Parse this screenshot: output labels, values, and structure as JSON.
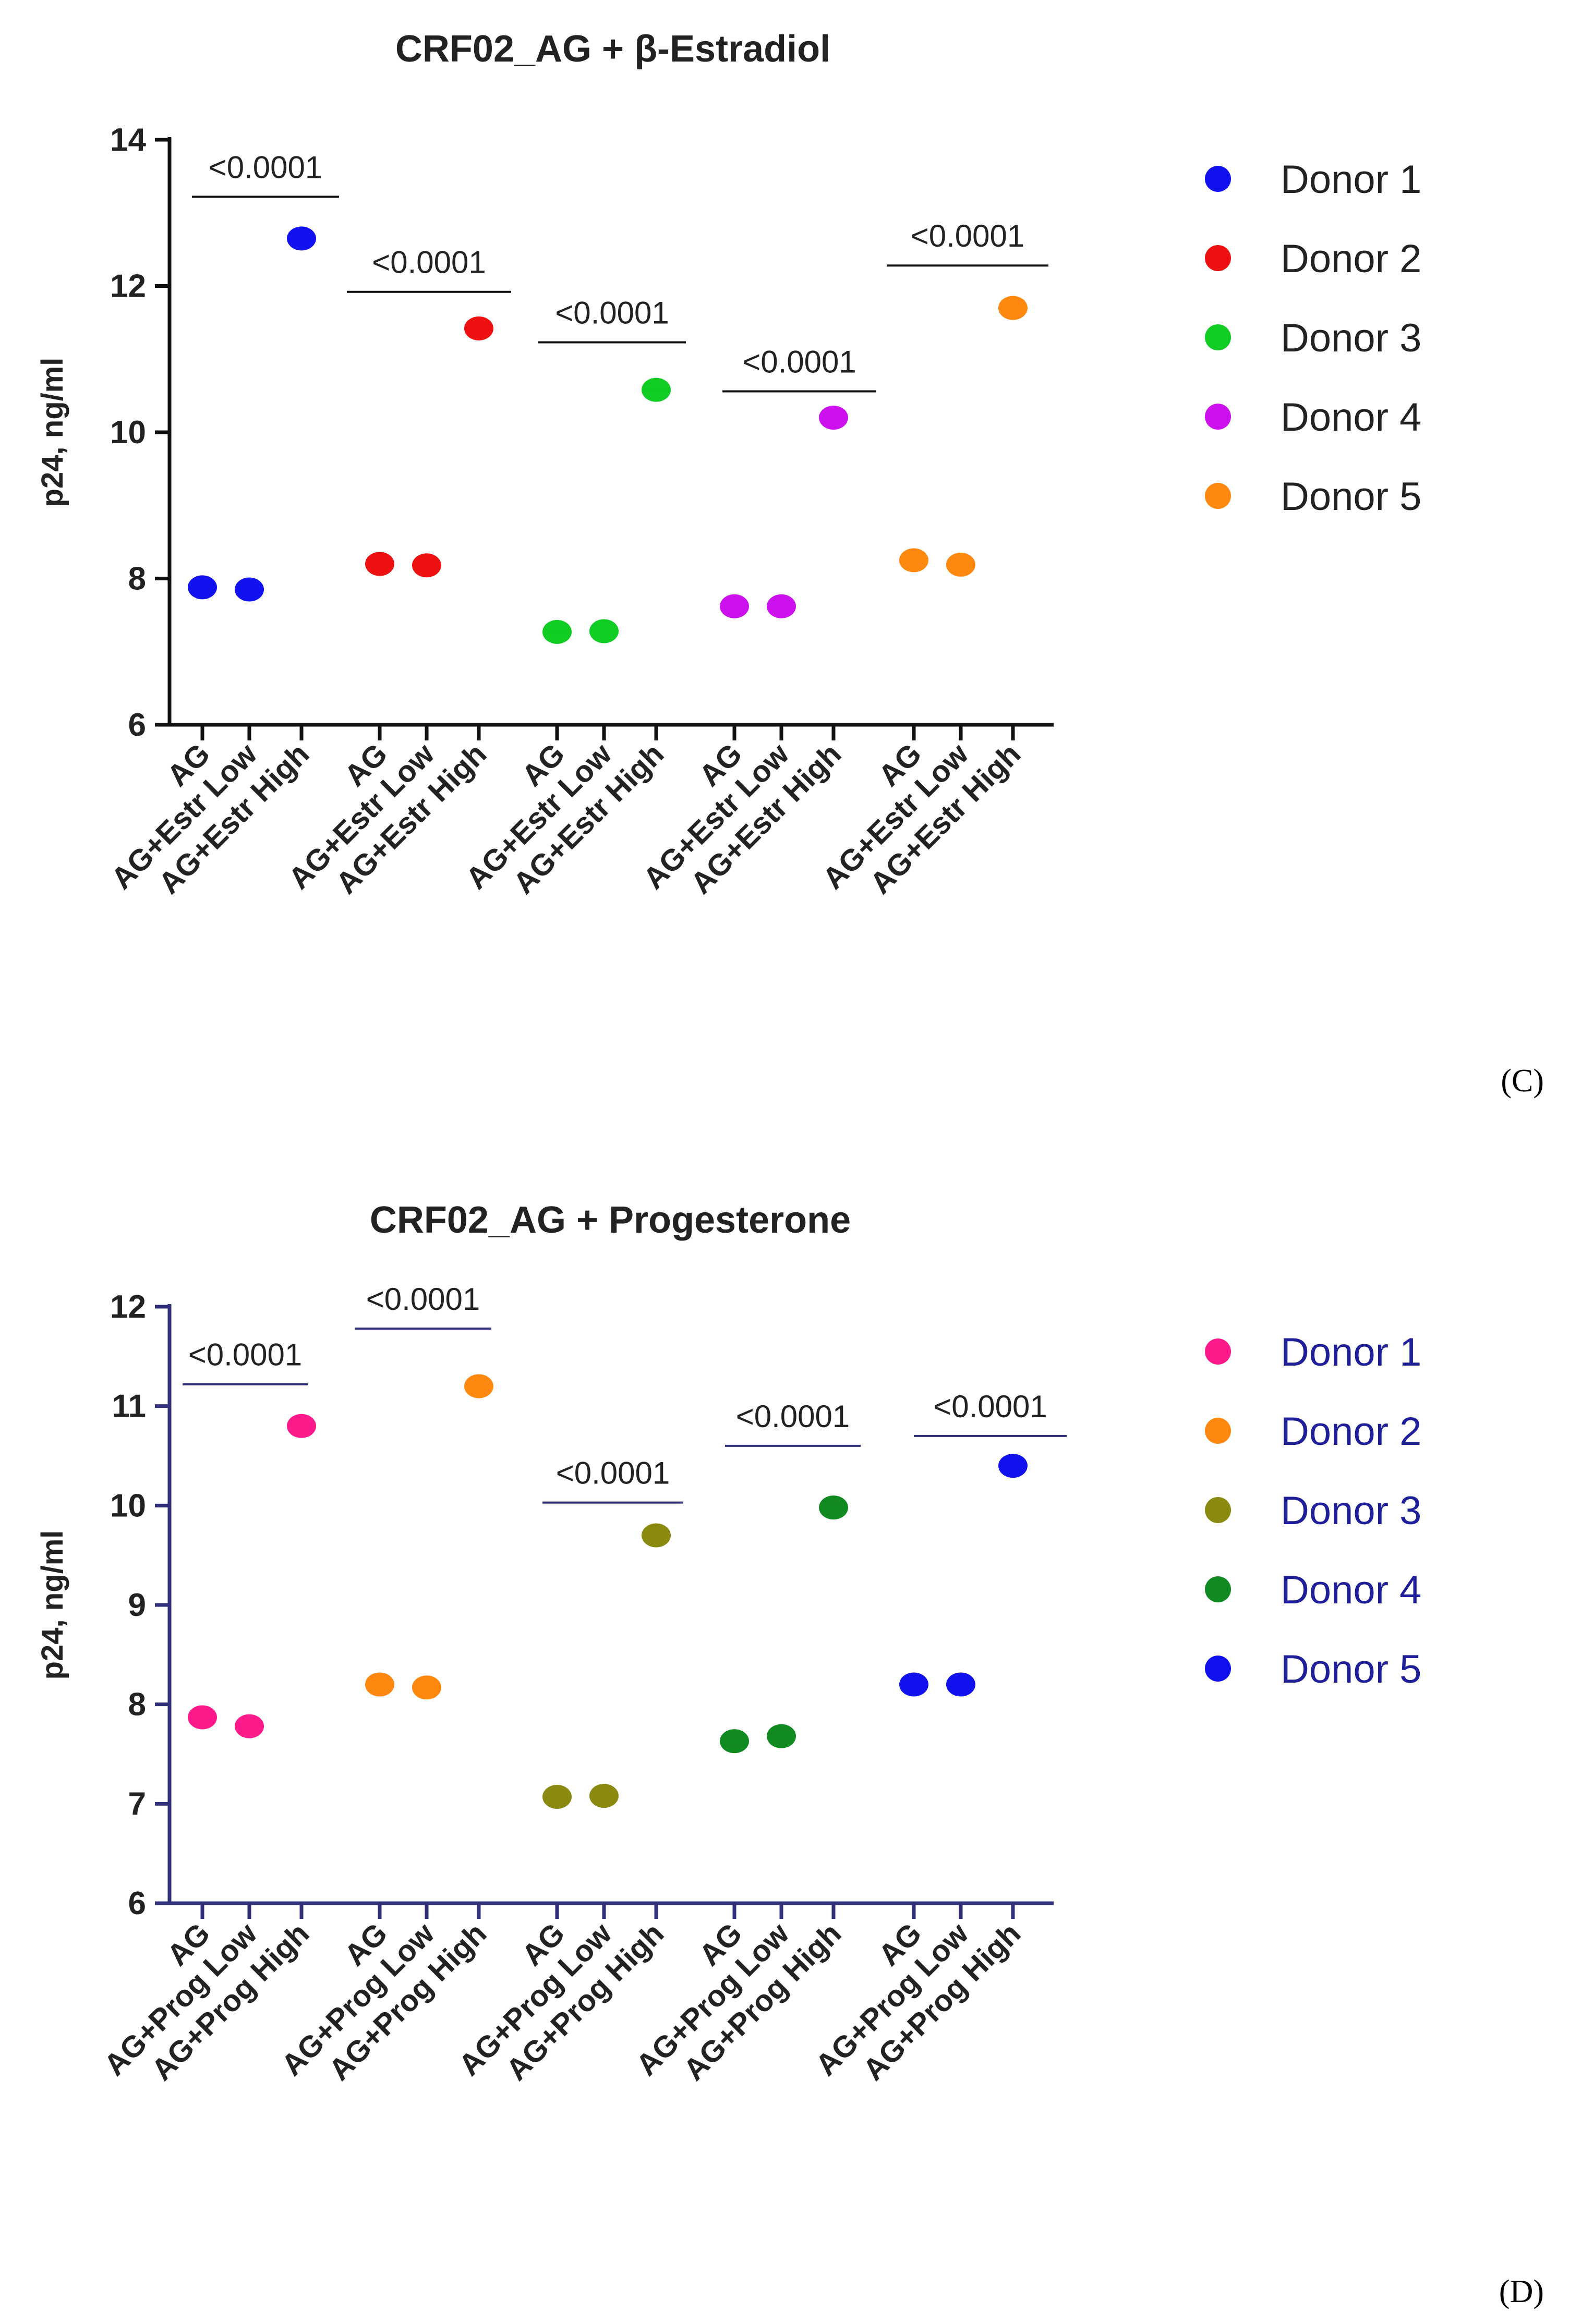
{
  "chart_data": [
    {
      "type": "scatter",
      "title": "CRF02_AG + β-Estradiol",
      "ylabel": "p24, ng/ml",
      "xlabel": "",
      "ylim": [
        6,
        14
      ],
      "yticks": [
        "6",
        "8",
        "10",
        "12",
        "14"
      ],
      "axis_color": "#111111",
      "text_color": "#222222",
      "legend_text_color": "#222222",
      "legend_position": "right",
      "categories": [
        "AG",
        "AG+Estr Low",
        "AG+Estr High",
        "AG",
        "AG+Estr Low",
        "AG+Estr High",
        "AG",
        "AG+Estr Low",
        "AG+Estr High",
        "AG",
        "AG+Estr Low",
        "AG+Estr High",
        "AG",
        "AG+Estr Low",
        "AG+Estr High"
      ],
      "series": [
        {
          "name": "Donor 1",
          "color": "#1212f0",
          "values": [
            7.88,
            7.85,
            12.65
          ]
        },
        {
          "name": "Donor 2",
          "color": "#ee1111",
          "values": [
            8.2,
            8.18,
            11.42
          ]
        },
        {
          "name": "Donor 3",
          "color": "#11cc22",
          "values": [
            7.27,
            7.28,
            10.58
          ]
        },
        {
          "name": "Donor 4",
          "color": "#cc11ee",
          "values": [
            7.62,
            7.62,
            10.2
          ]
        },
        {
          "name": "Donor 5",
          "color": "#ff8811",
          "values": [
            8.25,
            8.19,
            11.7
          ]
        }
      ],
      "annotations": [
        {
          "text": "<0.0001",
          "level": 13.22
        },
        {
          "text": "<0.0001",
          "level": 11.92
        },
        {
          "text": "<0.0001",
          "level": 11.23
        },
        {
          "text": "<0.0001",
          "level": 10.56
        },
        {
          "text": "<0.0001",
          "level": 12.28
        }
      ],
      "panel_label": "(C)"
    },
    {
      "type": "scatter",
      "title": "CRF02_AG + Progesterone",
      "ylabel": "p24, ng/ml",
      "xlabel": "",
      "ylim": [
        6,
        12
      ],
      "yticks": [
        "6",
        "7",
        "8",
        "9",
        "10",
        "11",
        "12"
      ],
      "axis_color": "#2f2f7a",
      "text_color": "#222222",
      "legend_text_color": "#1f1f9a",
      "legend_position": "right",
      "categories": [
        "AG",
        "AG+Prog Low",
        "AG+Prog High",
        "AG",
        "AG+Prog Low",
        "AG+Prog High",
        "AG",
        "AG+Prog Low",
        "AG+Prog High",
        "AG",
        "AG+Prog Low",
        "AG+Prog High",
        "AG",
        "AG+Prog Low",
        "AG+Prog High"
      ],
      "series": [
        {
          "name": "Donor 1",
          "color": "#ff1a8c",
          "values": [
            7.87,
            7.78,
            10.8
          ]
        },
        {
          "name": "Donor 2",
          "color": "#ff8811",
          "values": [
            8.2,
            8.17,
            11.2
          ]
        },
        {
          "name": "Donor 3",
          "color": "#8a8a10",
          "values": [
            7.07,
            7.08,
            9.7
          ]
        },
        {
          "name": "Donor 4",
          "color": "#118a22",
          "values": [
            7.63,
            7.68,
            9.98
          ]
        },
        {
          "name": "Donor 5",
          "color": "#1111ee",
          "values": [
            8.2,
            8.2,
            10.4
          ]
        }
      ],
      "annotations": [
        {
          "text": "<0.0001",
          "level": 11.22
        },
        {
          "text": "<0.0001",
          "level": 11.78
        },
        {
          "text": "<0.0001",
          "level": 10.03
        },
        {
          "text": "<0.0001",
          "level": 10.6
        },
        {
          "text": "<0.0001",
          "level": 10.7
        }
      ],
      "panel_label": "(D)"
    }
  ]
}
